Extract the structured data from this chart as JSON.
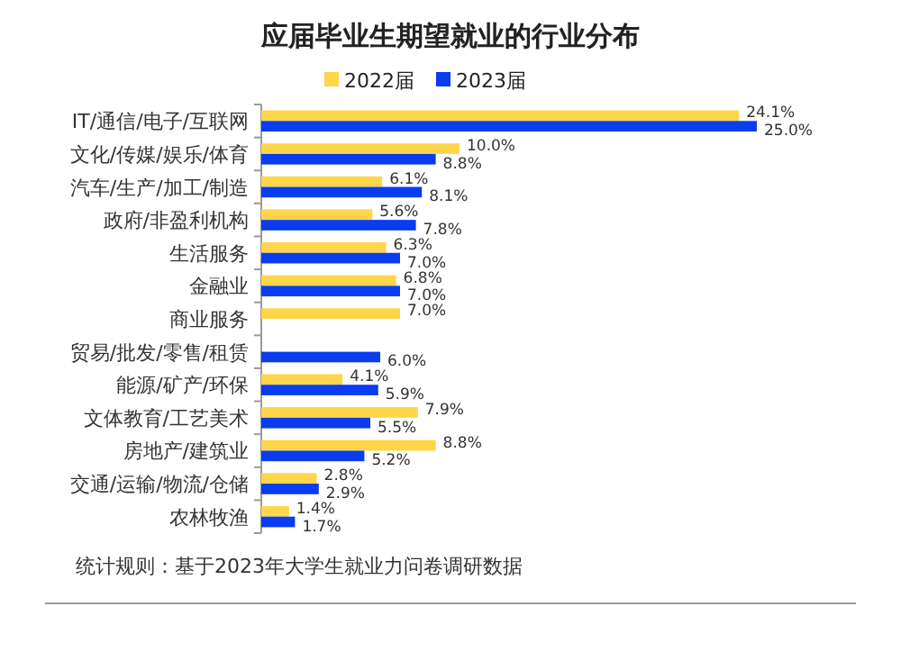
{
  "chart_data": {
    "type": "bar",
    "orientation": "horizontal",
    "title": "应届毕业生期望就业的行业分布",
    "categories": [
      "IT/通信/电子/互联网",
      "文化/传媒/娱乐/体育",
      "汽车/生产/加工/制造",
      "政府/非盈利机构",
      "生活服务",
      "金融业",
      "商业服务",
      "贸易/批发/零售/租赁",
      "能源/矿产/环保",
      "文体教育/工艺美术",
      "房地产/建筑业",
      "交通/运输/物流/仓储",
      "农林牧渔"
    ],
    "series": [
      {
        "name": "2022届",
        "color": "#ffd54a",
        "values": [
          24.1,
          10.0,
          6.1,
          5.6,
          6.3,
          6.8,
          7.0,
          null,
          4.1,
          7.9,
          8.8,
          2.8,
          1.4
        ],
        "value_labels": [
          "24.1%",
          "10.0%",
          "6.1%",
          "5.6%",
          "6.3%",
          "6.8%",
          "7.0%",
          null,
          "4.1%",
          "7.9%",
          "8.8%",
          "2.8%",
          "1.4%"
        ]
      },
      {
        "name": "2023届",
        "color": "#0a3cf0",
        "values": [
          25.0,
          8.8,
          8.1,
          7.8,
          7.0,
          7.0,
          null,
          6.0,
          5.9,
          5.5,
          5.2,
          2.9,
          1.7
        ],
        "value_labels": [
          "25.0%",
          "8.8%",
          "8.1%",
          "7.8%",
          "7.0%",
          "7.0%",
          null,
          "6.0%",
          "5.9%",
          "5.5%",
          "5.2%",
          "2.9%",
          "1.7%"
        ]
      }
    ],
    "legend": "top",
    "annotations": [
      "统计规则：基于2023年大学生就业力问卷调研数据"
    ]
  }
}
